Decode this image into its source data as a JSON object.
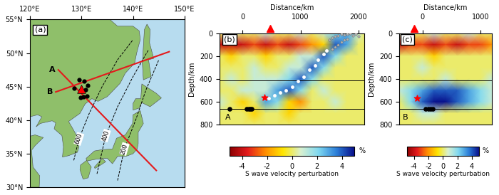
{
  "chart_data": [
    {
      "type": "map",
      "panel_label": "(a)",
      "xlim": [
        120,
        150
      ],
      "ylim": [
        30,
        55
      ],
      "xticks": [
        {
          "value": 120,
          "label": "120°E"
        },
        {
          "value": 130,
          "label": "130°E"
        },
        {
          "value": 140,
          "label": "140°E"
        },
        {
          "value": 150,
          "label": "150°E"
        }
      ],
      "yticks": [
        {
          "value": 30,
          "label": "30°N"
        },
        {
          "value": 35,
          "label": "35°N"
        },
        {
          "value": 40,
          "label": "40°N"
        },
        {
          "value": 45,
          "label": "45°N"
        },
        {
          "value": 50,
          "label": "50°N"
        },
        {
          "value": 55,
          "label": "55°N"
        }
      ],
      "profiles": [
        {
          "name": "A",
          "color": "#e41a1c",
          "lon": [
            125.5,
            144.5
          ],
          "lat": [
            47.5,
            32.5
          ]
        },
        {
          "name": "B",
          "color": "#e41a1c",
          "lon": [
            125.0,
            147.0
          ],
          "lat": [
            44.2,
            50.2
          ]
        }
      ],
      "slab_contours": [
        {
          "depth": 600,
          "lon": [
            128.5,
            129.5,
            131.5,
            134.0,
            137.0,
            140.0
          ],
          "lat": [
            34.0,
            37.2,
            41.0,
            45.0,
            49.0,
            52.0
          ]
        },
        {
          "depth": 400,
          "lon": [
            133.0,
            134.7,
            137.0,
            140.0,
            143.0
          ],
          "lat": [
            32.0,
            37.7,
            42.0,
            46.5,
            50.5
          ]
        },
        {
          "depth": 200,
          "lon": [
            137.0,
            138.3,
            140.5,
            142.5,
            145.0
          ],
          "lat": [
            31.0,
            35.7,
            40.0,
            44.5,
            49.0
          ]
        }
      ],
      "earthquakes": {
        "lon": [
          129.5,
          130.5,
          130.8,
          131.0,
          130.4,
          129.8,
          128.6,
          131.2
        ],
        "lat": [
          46.0,
          45.8,
          44.5,
          43.6,
          43.5,
          43.4,
          44.8,
          45.2
        ],
        "color": "black"
      },
      "volcano": {
        "lon": 130.0,
        "lat": 44.6,
        "color": "red",
        "marker": "triangle"
      }
    },
    {
      "type": "heatmap",
      "panel_label": "(b)",
      "profile": "A",
      "xlabel": "Distance/km",
      "ylabel": "Depth/km",
      "xlim": [
        -400,
        2100
      ],
      "ylim": [
        800,
        0
      ],
      "xticks": [
        0,
        1000,
        2000
      ],
      "yticks": [
        0,
        200,
        400,
        600,
        800
      ],
      "x": [
        -400,
        -200,
        0,
        200,
        400,
        600,
        800,
        1000,
        1200,
        1400,
        1600,
        1800,
        2000,
        2100
      ],
      "depth": [
        0,
        100,
        200,
        300,
        400,
        500,
        600,
        700,
        800
      ],
      "cells": [
        [
          0,
          1,
          0,
          0,
          1,
          0,
          0,
          1,
          0,
          1,
          2,
          3,
          1,
          0
        ],
        [
          -4,
          -4,
          -4,
          -3,
          -4,
          -3,
          -4,
          -3,
          -2,
          -1,
          4,
          3,
          0,
          0
        ],
        [
          0,
          -1,
          0,
          0,
          -1,
          0,
          0,
          1,
          1,
          4,
          2,
          0,
          0,
          0
        ],
        [
          0,
          0,
          0,
          1,
          0,
          0,
          1,
          1,
          4,
          2,
          0,
          0,
          0,
          0
        ],
        [
          0,
          1,
          0,
          1,
          1,
          1,
          2,
          4,
          2,
          0,
          0,
          0,
          0,
          0
        ],
        [
          0,
          0,
          1,
          1,
          1,
          3,
          4,
          2,
          0,
          1,
          0,
          0,
          0,
          0
        ],
        [
          1,
          0,
          -1,
          0,
          3,
          2,
          -1,
          -2,
          0,
          0,
          1,
          0,
          0,
          0
        ],
        [
          0,
          0,
          0,
          -1,
          0,
          0,
          -1,
          0,
          0,
          0,
          0,
          0,
          0,
          0
        ],
        [
          0,
          0,
          0,
          0,
          0,
          0,
          0,
          0,
          0,
          0,
          0,
          0,
          0,
          0
        ]
      ],
      "color_range": [
        -5,
        5
      ],
      "color_ticks": [
        -4,
        -2,
        0,
        2,
        4
      ],
      "colorbar_label": "S wave velocity perturbation",
      "colorbar_unit": "%",
      "discontinuities": [
        410,
        660
      ],
      "volcano": {
        "distance": 470,
        "color": "red",
        "marker": "triangle"
      },
      "shallow_events": {
        "distance": [
          1500,
          1550,
          1600,
          1650,
          1700,
          1750,
          1800,
          1850,
          1900,
          1950,
          2000,
          1700,
          1650,
          1600,
          1550,
          1800,
          1750
        ],
        "depth": [
          60,
          40,
          30,
          20,
          10,
          15,
          10,
          5,
          20,
          10,
          30,
          80,
          100,
          120,
          140,
          50,
          60
        ],
        "color": "#b0b0b0"
      },
      "slab_events": {
        "distance": [
          1450,
          1400,
          1300,
          1250,
          1150,
          1050,
          950,
          850,
          750,
          650,
          550,
          450
        ],
        "depth": [
          150,
          180,
          230,
          280,
          320,
          380,
          420,
          470,
          500,
          520,
          540,
          570
        ],
        "color": "white"
      },
      "deep_events": {
        "distance": [
          -230,
          70,
          100,
          130,
          160
        ],
        "depth": [
          660,
          660,
          660,
          660,
          660
        ],
        "color": "black"
      },
      "hypocenter": {
        "distance": 380,
        "depth": 560,
        "color": "red",
        "marker": "star"
      }
    },
    {
      "type": "heatmap",
      "panel_label": "(c)",
      "profile": "B",
      "xlabel": "Distance/km",
      "ylabel": "Depth/km",
      "xlim": [
        -400,
        1200
      ],
      "ylim": [
        800,
        0
      ],
      "xticks": [
        0,
        1000
      ],
      "yticks": [
        0,
        200,
        400,
        600,
        800
      ],
      "x": [
        -400,
        -200,
        0,
        200,
        400,
        600,
        800,
        1000,
        1200
      ],
      "depth": [
        0,
        100,
        200,
        300,
        400,
        500,
        600,
        700,
        800
      ],
      "cells": [
        [
          1,
          0,
          0,
          1,
          0,
          0,
          1,
          0,
          0
        ],
        [
          -4,
          -3,
          -3,
          -4,
          -3,
          -4,
          -3,
          -3,
          -2
        ],
        [
          0,
          0,
          0,
          -1,
          0,
          0,
          0,
          0,
          0
        ],
        [
          0,
          0,
          1,
          0,
          0,
          0,
          0,
          0,
          0
        ],
        [
          0,
          0,
          0,
          0,
          1,
          0,
          0,
          0,
          1
        ],
        [
          1,
          2,
          3,
          4,
          4,
          4,
          3,
          2,
          1
        ],
        [
          0,
          2,
          4,
          5,
          5,
          4,
          3,
          2,
          1
        ],
        [
          0,
          0,
          1,
          1,
          0,
          0,
          0,
          0,
          0
        ],
        [
          0,
          0,
          0,
          0,
          0,
          0,
          0,
          0,
          0
        ]
      ],
      "color_range": [
        -5,
        5
      ],
      "color_ticks": [
        -4,
        -2,
        0,
        2,
        4
      ],
      "colorbar_label": "S wave velocity perturbation",
      "colorbar_unit": "%",
      "discontinuities": [
        410,
        660
      ],
      "volcano": {
        "distance": -140,
        "color": "red",
        "marker": "triangle"
      },
      "deep_events": {
        "distance": [
          60,
          100,
          140,
          180
        ],
        "depth": [
          660,
          660,
          660,
          660
        ],
        "color": "black"
      },
      "hypocenter": {
        "distance": -90,
        "depth": 565,
        "color": "red",
        "marker": "star"
      }
    }
  ]
}
